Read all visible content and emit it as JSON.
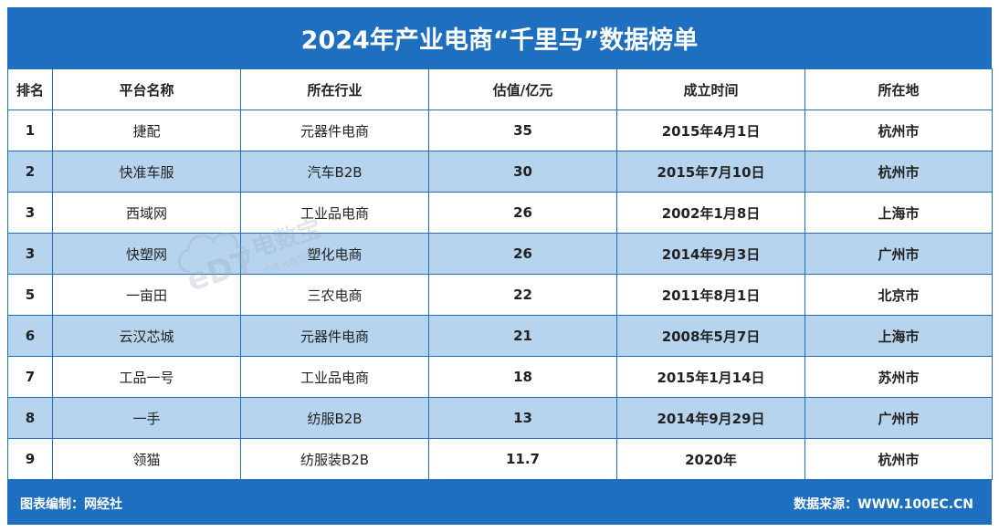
{
  "title": "2024年产业电商“千里马”数据榜单",
  "columns": [
    "排名",
    "平台名称",
    "所在行业",
    "估值/亿元",
    "成立时间",
    "所在地"
  ],
  "rows": [
    {
      "rank": "1",
      "name": "捷配",
      "industry": "元器件电商",
      "valuation": "35",
      "founded": "2015年4月1日",
      "city": "杭州市"
    },
    {
      "rank": "2",
      "name": "快准车服",
      "industry": "汽车B2B",
      "valuation": "30",
      "founded": "2015年7月10日",
      "city": "杭州市"
    },
    {
      "rank": "3",
      "name": "西域网",
      "industry": "工业品电商",
      "valuation": "26",
      "founded": "2002年1月8日",
      "city": "上海市"
    },
    {
      "rank": "3",
      "name": "快塑网",
      "industry": "塑化电商",
      "valuation": "26",
      "founded": "2014年9月3日",
      "city": "广州市"
    },
    {
      "rank": "5",
      "name": "一亩田",
      "industry": "三农电商",
      "valuation": "22",
      "founded": "2011年8月1日",
      "city": "北京市"
    },
    {
      "rank": "6",
      "name": "云汉芯城",
      "industry": "元器件电商",
      "valuation": "21",
      "founded": "2008年5月7日",
      "city": "上海市"
    },
    {
      "rank": "7",
      "name": "工品一号",
      "industry": "工业品电商",
      "valuation": "18",
      "founded": "2015年1月14日",
      "city": "苏州市"
    },
    {
      "rank": "8",
      "name": "一手",
      "industry": "纺服B2B",
      "valuation": "13",
      "founded": "2014年9月29日",
      "city": "广州市"
    },
    {
      "rank": "9",
      "name": "领猫",
      "industry": "纺服装B2B",
      "valuation": "11.7",
      "founded": "2020年",
      "city": "杭州市"
    }
  ],
  "footer": {
    "left": "图表编制：网经社",
    "right": "数据来源：WWW.100EC.CN"
  },
  "watermark": {
    "logo_text": "eDT",
    "brand": "电数宝",
    "sub": "电商大数据库"
  },
  "colors": {
    "brand_blue": "#1e6fbf",
    "row_shade": "#b7d4ee"
  }
}
